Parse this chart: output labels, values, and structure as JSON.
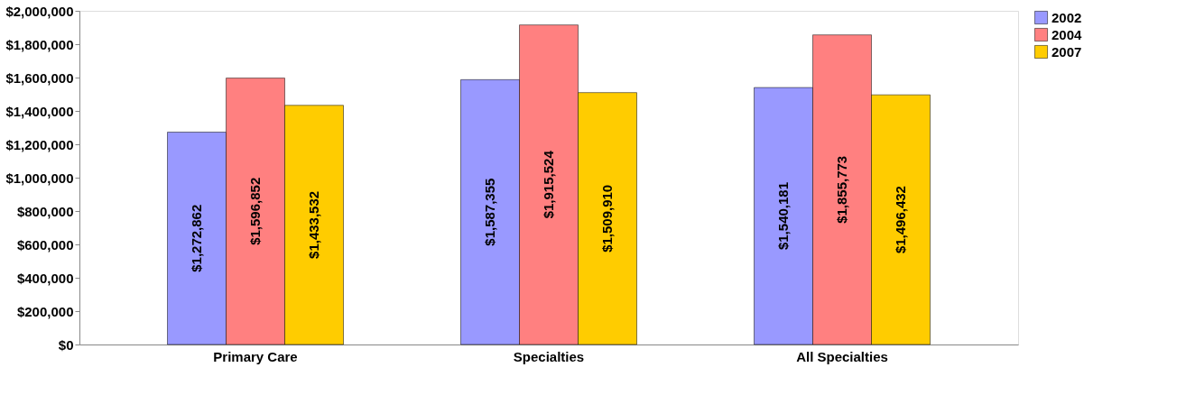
{
  "chart_data": {
    "type": "bar",
    "categories": [
      "Primary Care",
      "Specialties",
      "All Specialties"
    ],
    "series": [
      {
        "name": "2002",
        "color": "#9999ff",
        "values": [
          1272862,
          1587355,
          1540181
        ],
        "value_labels": [
          "$1,272,862",
          "$1,587,355",
          "$1,540,181"
        ]
      },
      {
        "name": "2004",
        "color": "#ff8080",
        "values": [
          1596852,
          1915524,
          1855773
        ],
        "value_labels": [
          "$1,596,852",
          "$1,915,524",
          "$1,855,773"
        ]
      },
      {
        "name": "2007",
        "color": "#ffcc00",
        "values": [
          1433532,
          1509910,
          1496432
        ],
        "value_labels": [
          "$1,433,532",
          "$1,509,910",
          "$1,496,432"
        ]
      }
    ],
    "ylim": [
      0,
      2000000
    ],
    "yticks": [
      {
        "value": 0,
        "label": "$0"
      },
      {
        "value": 200000,
        "label": "$200,000"
      },
      {
        "value": 400000,
        "label": "$400,000"
      },
      {
        "value": 600000,
        "label": "$600,000"
      },
      {
        "value": 800000,
        "label": "$800,000"
      },
      {
        "value": 1000000,
        "label": "$1,000,000"
      },
      {
        "value": 1200000,
        "label": "$1,200,000"
      },
      {
        "value": 1400000,
        "label": "$1,400,000"
      },
      {
        "value": 1600000,
        "label": "$1,600,000"
      },
      {
        "value": 1800000,
        "label": "$1,800,000"
      },
      {
        "value": 2000000,
        "label": "$2,000,000"
      }
    ],
    "grid": false,
    "legend": "right"
  }
}
